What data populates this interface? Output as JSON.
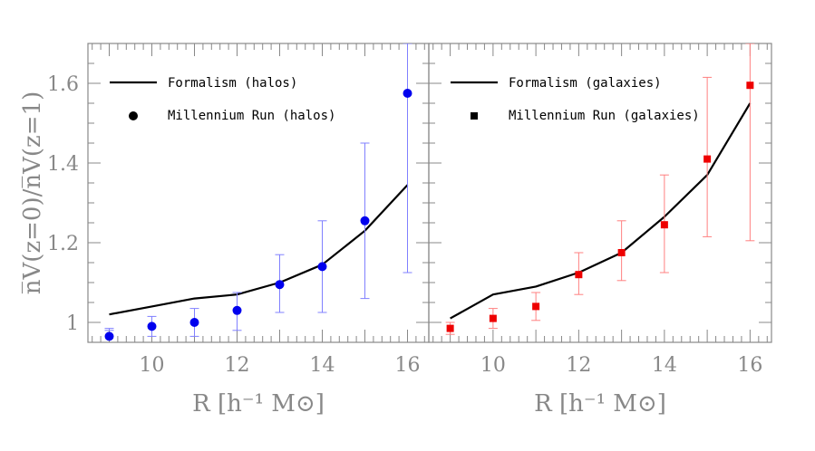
{
  "chart_data": [
    {
      "type": "line",
      "xlabel": "R [h⁻¹ M⊙]",
      "ylabel": "n̅V(z=0)/n̅V(z=1)",
      "xlim": [
        8.5,
        16.5
      ],
      "ylim": [
        0.95,
        1.7
      ],
      "x_ticks": [
        "10",
        "12",
        "14",
        "16"
      ],
      "y_ticks": [
        "1",
        "1.2",
        "1.4",
        "1.6"
      ],
      "legend": {
        "placement": "top-left",
        "entries": [
          "Formalism (halos)",
          "Millennium Run (halos)"
        ]
      },
      "series": [
        {
          "name": "Formalism (halos)",
          "kind": "line",
          "color": "#000000",
          "x": [
            9,
            10,
            11,
            12,
            13,
            14,
            15,
            16
          ],
          "y": [
            1.02,
            1.04,
            1.06,
            1.07,
            1.1,
            1.145,
            1.23,
            1.345
          ]
        },
        {
          "name": "Millennium Run (halos)",
          "kind": "points",
          "marker": "circle",
          "color": "#0000ee",
          "error_color": "#8080ff",
          "x": [
            9,
            10,
            11,
            12,
            13,
            14,
            15,
            16
          ],
          "y": [
            0.965,
            0.99,
            1.0,
            1.03,
            1.095,
            1.14,
            1.255,
            1.575
          ],
          "err_low": [
            0.98,
            0.965,
            0.965,
            0.98,
            1.025,
            1.025,
            1.06,
            1.125
          ],
          "err_high": [
            0.985,
            1.015,
            1.035,
            1.075,
            1.17,
            1.255,
            1.45,
            1.7
          ]
        }
      ]
    },
    {
      "type": "line",
      "xlabel": "R [h⁻¹ M⊙]",
      "xlim": [
        8.5,
        16.5
      ],
      "ylim": [
        0.95,
        1.7
      ],
      "x_ticks": [
        "10",
        "12",
        "14",
        "16"
      ],
      "legend": {
        "placement": "top-left",
        "entries": [
          "Formalism (galaxies)",
          "Millennium Run (galaxies)"
        ]
      },
      "series": [
        {
          "name": "Formalism (galaxies)",
          "kind": "line",
          "color": "#000000",
          "x": [
            9,
            10,
            11,
            12,
            13,
            14,
            15,
            16
          ],
          "y": [
            1.01,
            1.07,
            1.09,
            1.125,
            1.175,
            1.265,
            1.37,
            1.55
          ]
        },
        {
          "name": "Millennium Run (galaxies)",
          "kind": "points",
          "marker": "square",
          "color": "#ee0000",
          "error_color": "#ff8080",
          "x": [
            9,
            10,
            11,
            12,
            13,
            14,
            15,
            16
          ],
          "y": [
            0.985,
            1.01,
            1.04,
            1.12,
            1.175,
            1.245,
            1.41,
            1.595
          ],
          "err_low": [
            0.97,
            0.985,
            1.005,
            1.07,
            1.105,
            1.125,
            1.215,
            1.205
          ],
          "err_high": [
            1.0,
            1.035,
            1.075,
            1.175,
            1.255,
            1.37,
            1.615,
            1.7
          ]
        }
      ]
    }
  ]
}
